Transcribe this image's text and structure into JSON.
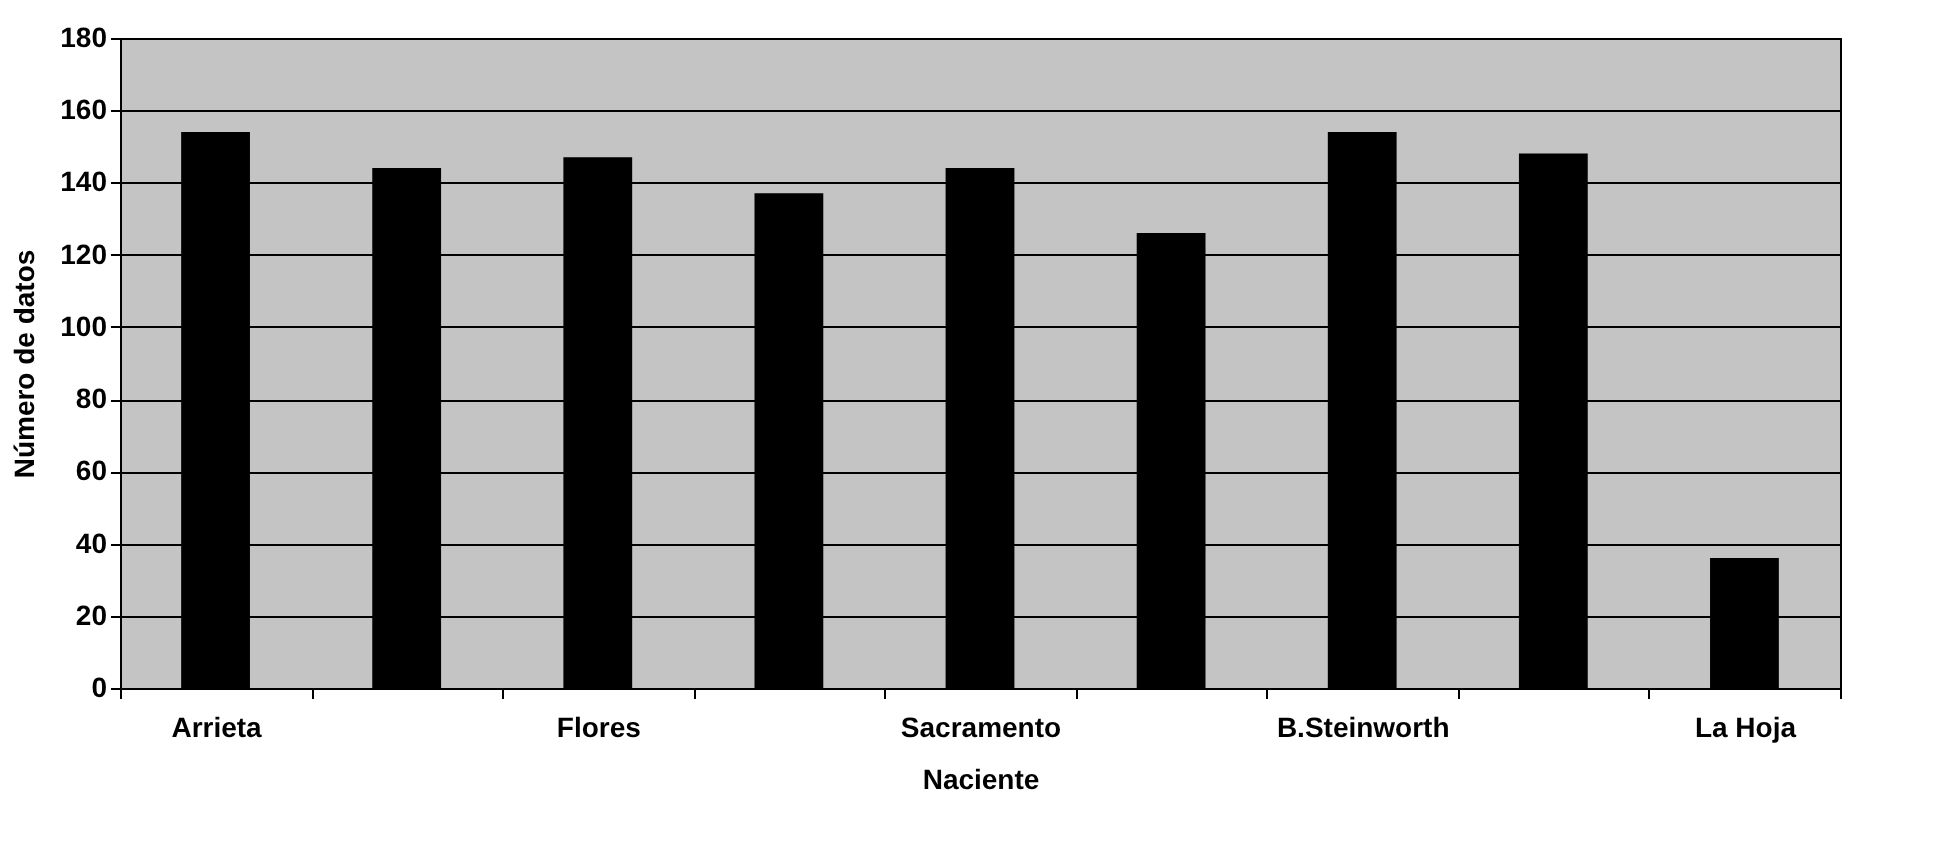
{
  "chart_data": {
    "type": "bar",
    "xlabel": "Naciente",
    "ylabel": "Número de datos",
    "categories": [
      "Arrieta",
      null,
      "Flores",
      null,
      "Sacramento",
      null,
      "B.Steinworth",
      null,
      "La Hoja"
    ],
    "values": [
      154,
      144,
      147,
      137,
      144,
      126,
      154,
      148,
      36
    ],
    "color": "#000000",
    "ylim": [
      0,
      180
    ],
    "yticks": [
      0,
      20,
      40,
      60,
      80,
      100,
      120,
      140,
      160,
      180
    ],
    "grid": "y"
  }
}
